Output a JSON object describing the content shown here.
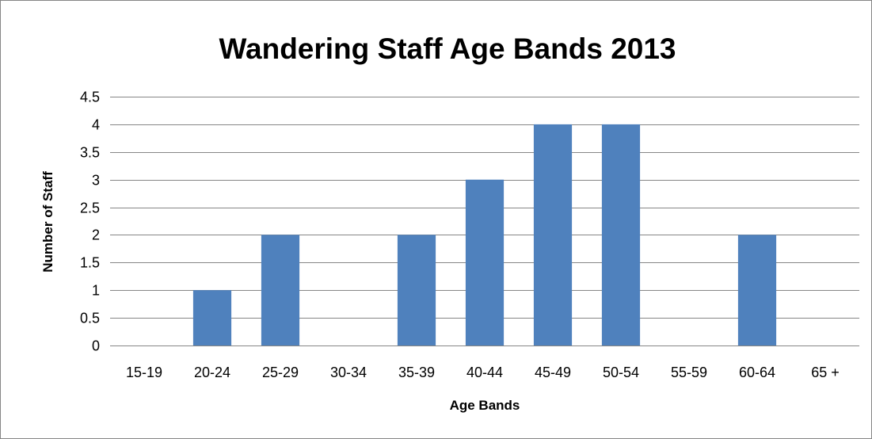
{
  "chart_data": {
    "type": "bar",
    "title": "Wandering Staff Age Bands 2013",
    "xlabel": "Age Bands",
    "ylabel": "Number of Staff",
    "categories": [
      "15-19",
      "20-24",
      "25-29",
      "30-34",
      "35-39",
      "40-44",
      "45-49",
      "50-54",
      "55-59",
      "60-64",
      "65 +"
    ],
    "values": [
      0,
      1,
      2,
      0,
      2,
      3,
      4,
      4,
      0,
      2,
      0
    ],
    "ylim": [
      0,
      4.5
    ],
    "yticks": [
      "0",
      "0.5",
      "1",
      "1.5",
      "2",
      "2.5",
      "3",
      "3.5",
      "4",
      "4.5"
    ],
    "grid": true,
    "legend": "none",
    "bar_color": "#4f81bd",
    "gridline_color": "#868686"
  }
}
